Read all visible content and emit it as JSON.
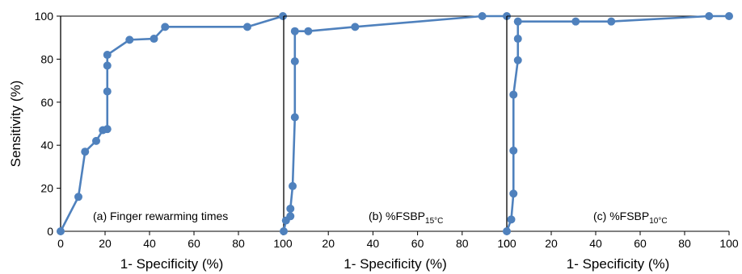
{
  "chart_data": [
    {
      "type": "line",
      "annotation": "(a) Finger rewarming times",
      "annotation_sub": "",
      "xlabel": "1- Specificity (%)",
      "ylabel": "Sensitivity (%)",
      "xlim": [
        0,
        100
      ],
      "ylim": [
        0,
        100
      ],
      "xticks": [
        0,
        20,
        40,
        60,
        80,
        100
      ],
      "yticks": [
        0,
        20,
        40,
        60,
        80,
        100
      ],
      "x": [
        0,
        8,
        11,
        16,
        19,
        21,
        21,
        21,
        21,
        31,
        42,
        47,
        84,
        100
      ],
      "y": [
        0,
        16,
        37,
        42,
        47,
        47.5,
        65,
        77,
        82,
        89,
        89.5,
        95,
        95,
        100
      ]
    },
    {
      "type": "line",
      "annotation": "(b) %FSBP",
      "annotation_sub": "15°C",
      "xlabel": "1- Specificity (%)",
      "ylabel": "",
      "xlim": [
        0,
        100
      ],
      "ylim": [
        0,
        100
      ],
      "xticks": [
        0,
        20,
        40,
        60,
        80,
        100
      ],
      "yticks": [],
      "x": [
        0,
        1,
        3,
        3,
        4,
        5,
        5,
        5,
        11,
        32,
        89,
        100
      ],
      "y": [
        0,
        5,
        7,
        10.5,
        21,
        53,
        79,
        93,
        93,
        95,
        100,
        100
      ],
      "hide_first_tick": true
    },
    {
      "type": "line",
      "annotation": "(c) %FSBP",
      "annotation_sub": "10°C",
      "xlabel": "1- Specificity (%)",
      "ylabel": "",
      "xlim": [
        0,
        100
      ],
      "ylim": [
        0,
        100
      ],
      "xticks": [
        0,
        20,
        40,
        60,
        80,
        100
      ],
      "yticks": [],
      "x": [
        0,
        2,
        3,
        3,
        3,
        5,
        5,
        5,
        31,
        47,
        91,
        100
      ],
      "y": [
        0,
        5.5,
        17.5,
        37.5,
        63.5,
        79.5,
        89.5,
        97.5,
        97.5,
        97.5,
        100,
        100
      ]
    }
  ]
}
